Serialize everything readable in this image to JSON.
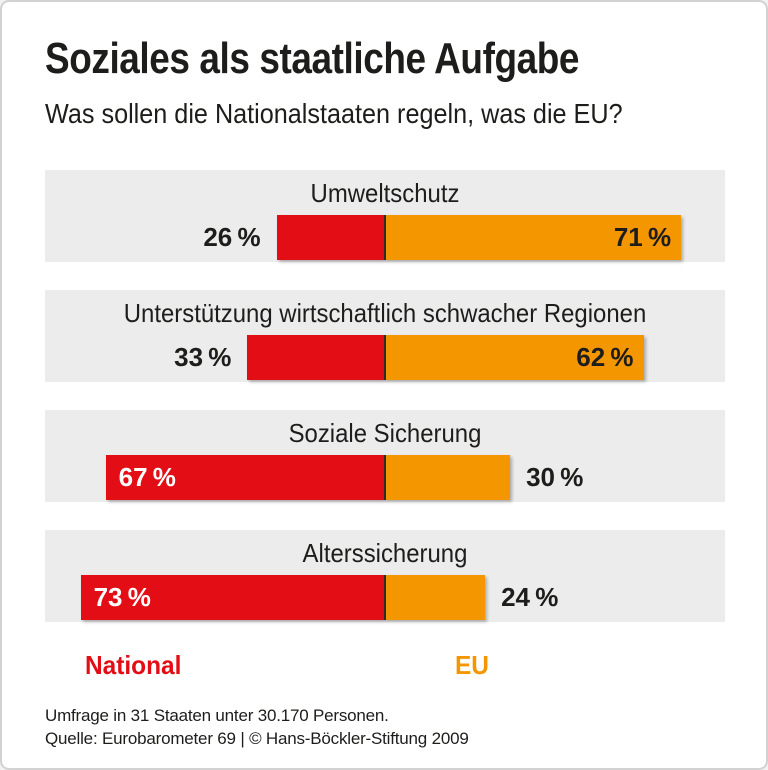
{
  "header": {
    "title": "Soziales als staatliche Aufgabe",
    "subtitle": "Was sollen die Nationalstaaten regeln, was die EU?"
  },
  "chart_data": {
    "type": "bar",
    "variant": "diverging-horizontal-paired",
    "unit": "%",
    "categories": [
      "Umweltschutz",
      "Unterstützung wirtschaftlich schwacher Regionen",
      "Soziale Sicherung",
      "Alterssicherung"
    ],
    "series": [
      {
        "name": "National",
        "color": "#e30d15",
        "side": "left",
        "values": [
          26,
          33,
          67,
          73
        ]
      },
      {
        "name": "EU",
        "color": "#f49600",
        "side": "right",
        "values": [
          71,
          62,
          30,
          24
        ]
      }
    ],
    "axis": {
      "center_line": true,
      "center_line_color": "#2b2b2b"
    },
    "legend_position": "bottom",
    "band_background": "#ececec"
  },
  "legend": {
    "national": {
      "label": "National",
      "color": "#e30d15"
    },
    "eu": {
      "label": "EU",
      "color": "#f49600"
    }
  },
  "footer": {
    "line1": "Umfrage in 31 Staaten unter 30.170 Personen.",
    "line2": "Quelle: Eurobarometer 69 | © Hans-Böckler-Stiftung 2009"
  },
  "colors": {
    "text": "#1d1d1b",
    "card_border": "#d2d2d2",
    "band_bg": "#ececec"
  }
}
